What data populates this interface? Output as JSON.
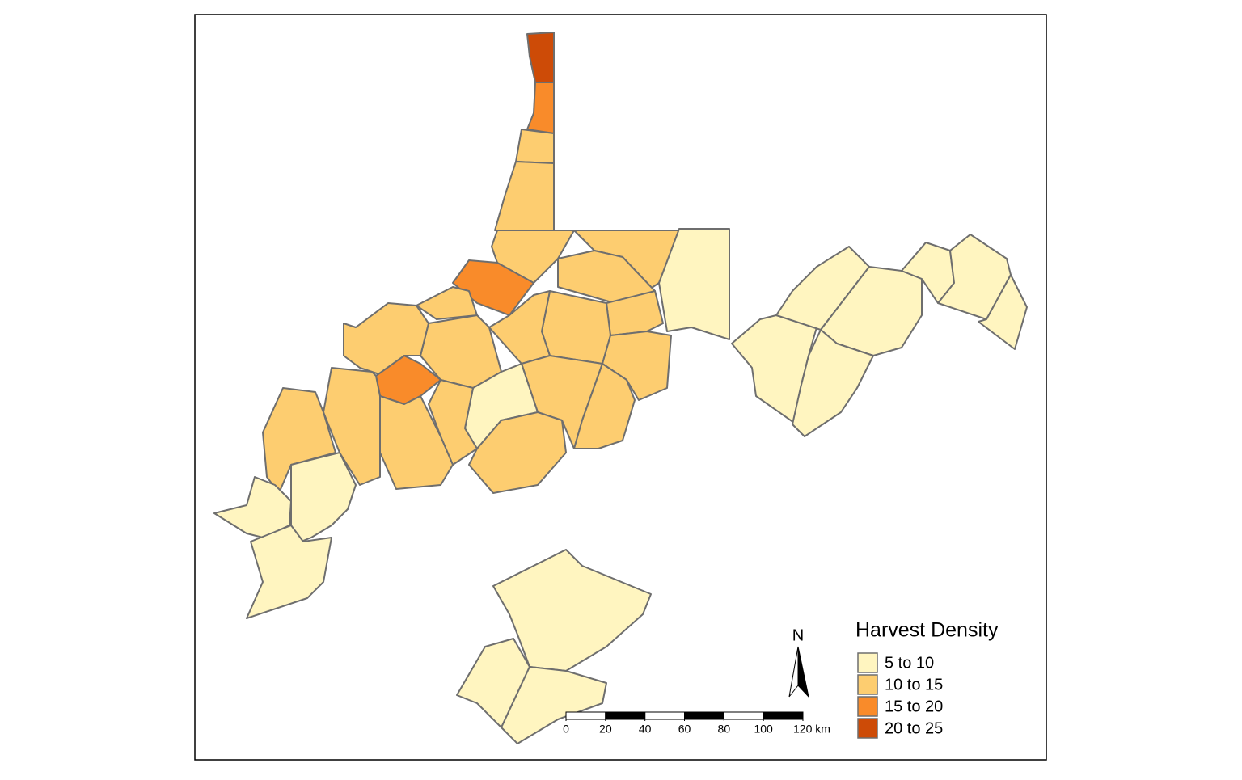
{
  "map": {
    "north_label": "N",
    "legend": {
      "title": "Harvest Density",
      "items": [
        {
          "label": "5 to 10",
          "color": "#fff5c0"
        },
        {
          "label": "10 to 15",
          "color": "#fdcd70"
        },
        {
          "label": "15 to 20",
          "color": "#f98b2a"
        },
        {
          "label": "20 to 25",
          "color": "#cd4b07"
        }
      ]
    },
    "scale_bar": {
      "ticks": [
        0,
        20,
        40,
        60,
        80,
        100,
        {
          "value": 120,
          "label": "120 km"
        }
      ]
    }
  }
}
